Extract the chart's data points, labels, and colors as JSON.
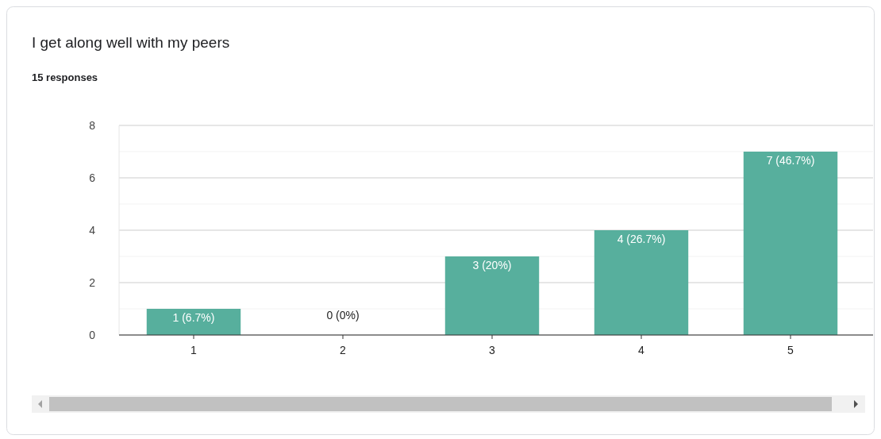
{
  "chart_data": {
    "type": "bar",
    "title": "I get along well with my peers",
    "subtitle": "15 responses",
    "categories": [
      "1",
      "2",
      "3",
      "4",
      "5"
    ],
    "values": [
      1,
      0,
      3,
      4,
      7
    ],
    "value_labels": [
      "1 (6.7%)",
      "0 (0%)",
      "3 (20%)",
      "4 (26.7%)",
      "7 (46.7%)"
    ],
    "color": "#57af9d",
    "ylim": [
      0,
      8
    ],
    "yticks": [
      0,
      {
        "value": 1,
        "label": null
      },
      2,
      {
        "value": 3,
        "label": null
      },
      4,
      {
        "value": 5,
        "label": null
      },
      6,
      {
        "value": 7,
        "label": null
      },
      8
    ],
    "grid": "y"
  }
}
